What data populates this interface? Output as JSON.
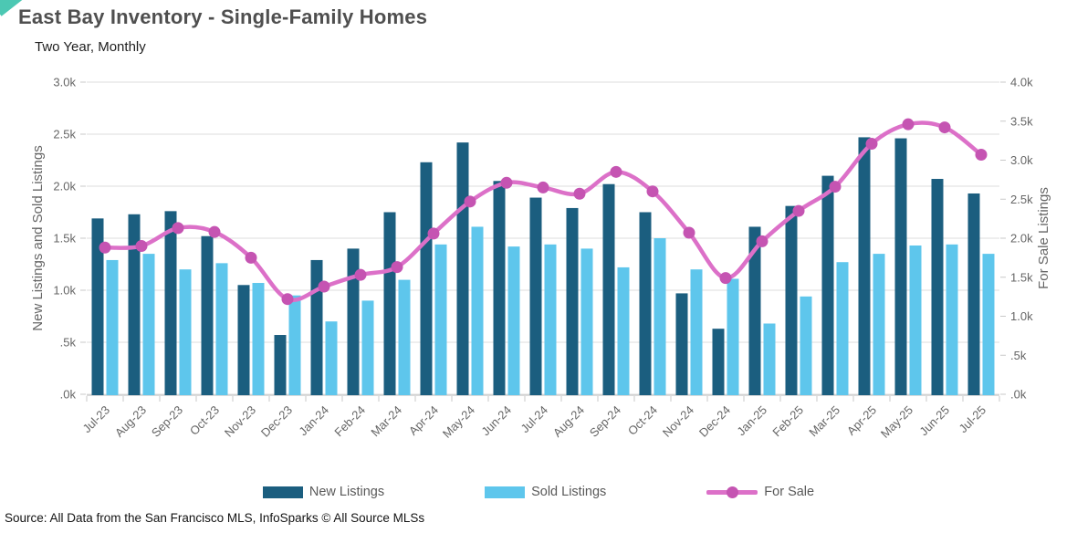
{
  "page": {
    "title": "East Bay Inventory - Single-Family Homes",
    "subtitle": "Two Year, Monthly",
    "source": "Source: All Data from the San Francisco MLS, InfoSparks © All Source MLSs"
  },
  "colors": {
    "new_listings": "#1b5e7f",
    "sold_listings": "#5ec6ec",
    "for_sale_line": "#dc70c8",
    "for_sale_dot": "#c554b2",
    "corner_accent": "#4cc8b3",
    "grid": "#dcdcdc",
    "axis_line": "#cfcfcf",
    "axis_text": "#666666",
    "title_text": "#4f4f4f"
  },
  "legend": {
    "items": [
      {
        "label": "New Listings",
        "type": "bar",
        "color_key": "new_listings"
      },
      {
        "label": "Sold Listings",
        "type": "bar",
        "color_key": "sold_listings"
      },
      {
        "label": "For Sale",
        "type": "line",
        "color_key": "for_sale_line"
      }
    ]
  },
  "chart_data": {
    "type": "bar",
    "subtype": "grouped-bars-with-line",
    "title": "East Bay Inventory - Single-Family Homes",
    "subtitle": "Two Year, Monthly",
    "categories": [
      "Jul-23",
      "Aug-23",
      "Sep-23",
      "Oct-23",
      "Nov-23",
      "Dec-23",
      "Jan-24",
      "Feb-24",
      "Mar-24",
      "Apr-24",
      "May-24",
      "Jun-24",
      "Jul-24",
      "Aug-24",
      "Sep-24",
      "Oct-24",
      "Nov-24",
      "Dec-24",
      "Jan-25",
      "Feb-25",
      "Mar-25",
      "Apr-25",
      "May-25",
      "Jun-25",
      "Jul-25"
    ],
    "series": [
      {
        "name": "New Listings",
        "type": "bar",
        "axis": "left",
        "values": [
          1690,
          1730,
          1760,
          1520,
          1050,
          570,
          1290,
          1400,
          1750,
          2230,
          2420,
          2050,
          1890,
          1790,
          2020,
          1750,
          970,
          630,
          1610,
          1810,
          2100,
          2470,
          2460,
          2070,
          1930
        ]
      },
      {
        "name": "Sold Listings",
        "type": "bar",
        "axis": "left",
        "values": [
          1290,
          1350,
          1200,
          1260,
          1070,
          950,
          700,
          900,
          1100,
          1440,
          1610,
          1420,
          1440,
          1400,
          1220,
          1500,
          1200,
          1110,
          680,
          940,
          1270,
          1350,
          1430,
          1440,
          1350
        ]
      },
      {
        "name": "For Sale",
        "type": "line",
        "axis": "right",
        "values": [
          1880,
          1900,
          2130,
          2080,
          1750,
          1220,
          1380,
          1530,
          1630,
          2060,
          2470,
          2710,
          2650,
          2570,
          2850,
          2600,
          2070,
          1490,
          1960,
          2350,
          2660,
          3210,
          3460,
          3420,
          3070
        ]
      }
    ],
    "left_axis": {
      "label": "New Listings and Sold Listings",
      "min": 0,
      "max": 3000,
      "ticks": [
        "3.0k",
        "2.5k",
        "2.0k",
        "1.5k",
        "1.0k",
        ".5k",
        ".0k"
      ]
    },
    "right_axis": {
      "label": "For Sale Listings",
      "min": 0,
      "max": 4000,
      "ticks": [
        "4.0k",
        "3.5k",
        "3.0k",
        "2.5k",
        "2.0k",
        "1.5k",
        "1.0k",
        ".5k",
        ".0k"
      ]
    },
    "grid": true,
    "legend_position": "bottom"
  }
}
